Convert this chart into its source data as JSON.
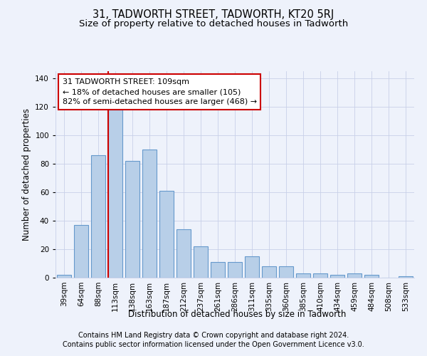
{
  "title": "31, TADWORTH STREET, TADWORTH, KT20 5RJ",
  "subtitle": "Size of property relative to detached houses in Tadworth",
  "xlabel": "Distribution of detached houses by size in Tadworth",
  "ylabel": "Number of detached properties",
  "bar_labels": [
    "39sqm",
    "64sqm",
    "88sqm",
    "113sqm",
    "138sqm",
    "163sqm",
    "187sqm",
    "212sqm",
    "237sqm",
    "261sqm",
    "286sqm",
    "311sqm",
    "335sqm",
    "360sqm",
    "385sqm",
    "410sqm",
    "434sqm",
    "459sqm",
    "484sqm",
    "508sqm",
    "533sqm"
  ],
  "bar_values": [
    2,
    37,
    86,
    118,
    82,
    90,
    61,
    34,
    22,
    11,
    11,
    15,
    8,
    8,
    3,
    3,
    2,
    3,
    2,
    0,
    1
  ],
  "bar_color": "#b8cfe8",
  "bar_edge_color": "#6699cc",
  "vline_x_idx": 3,
  "vline_color": "#cc0000",
  "annotation_text_line1": "31 TADWORTH STREET: 109sqm",
  "annotation_text_line2": "← 18% of detached houses are smaller (105)",
  "annotation_text_line3": "82% of semi-detached houses are larger (468) →",
  "annotation_box_color": "#ffffff",
  "annotation_box_edge": "#cc0000",
  "ylim": [
    0,
    145
  ],
  "yticks": [
    0,
    20,
    40,
    60,
    80,
    100,
    120,
    140
  ],
  "footer_line1": "Contains HM Land Registry data © Crown copyright and database right 2024.",
  "footer_line2": "Contains public sector information licensed under the Open Government Licence v3.0.",
  "bg_color": "#eef2fb",
  "plot_bg_color": "#eef2fb",
  "title_fontsize": 10.5,
  "subtitle_fontsize": 9.5,
  "axis_label_fontsize": 8.5,
  "tick_fontsize": 7.5,
  "annotation_fontsize": 8,
  "footer_fontsize": 7
}
